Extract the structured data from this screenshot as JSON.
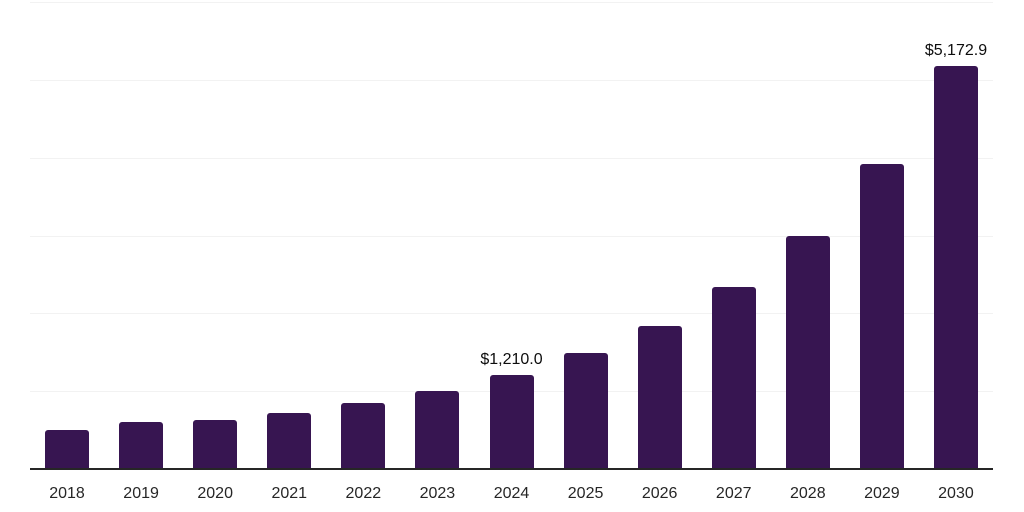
{
  "chart": {
    "background_color": "#ffffff",
    "bar_color": "#371551",
    "gridline_color": "#f2f2f2",
    "axis_line_color": "#262626",
    "tick_label_color": "#262626",
    "data_label_color": "#0d0d0d"
  },
  "chart_data": {
    "type": "bar",
    "title": "",
    "xlabel": "",
    "ylabel": "",
    "categories": [
      "2018",
      "2019",
      "2020",
      "2021",
      "2022",
      "2023",
      "2024",
      "2025",
      "2026",
      "2027",
      "2028",
      "2029",
      "2030"
    ],
    "values": [
      495,
      598,
      628,
      719,
      848,
      1001,
      1210.0,
      1485,
      1832,
      2333,
      3000,
      3915,
      5172.9
    ],
    "data_labels": {
      "2024": "$1,210.0",
      "2030": "$5,172.9"
    },
    "ylim": [
      0,
      6000
    ],
    "gridline_interval": 1000,
    "grid": true,
    "y_axis_labels_visible": false,
    "legend": false
  }
}
